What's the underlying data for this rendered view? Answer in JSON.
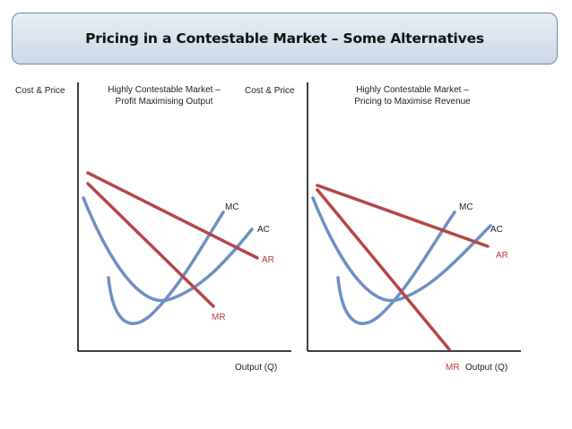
{
  "title": "Pricing in a Contestable Market – Some Alternatives",
  "left": {
    "ylabel": "Cost & Price",
    "heading_line1": "Highly Contestable Market –",
    "heading_line2": "Profit Maximising Output",
    "xlabel": "Output (Q)",
    "mc": "MC",
    "ac": "AC",
    "ar": "AR",
    "mr": "MR"
  },
  "right": {
    "ylabel": "Cost & Price",
    "heading_line1": "Highly Contestable Market –",
    "heading_line2": "Pricing to Maximise Revenue",
    "xlabel": "Output (Q)",
    "mc": "MC",
    "ac": "AC",
    "ar": "AR",
    "mr": "MR"
  },
  "colors": {
    "cost_curves": "#6f8fc4",
    "revenue_curves": "#b54747",
    "axis": "#000000"
  }
}
